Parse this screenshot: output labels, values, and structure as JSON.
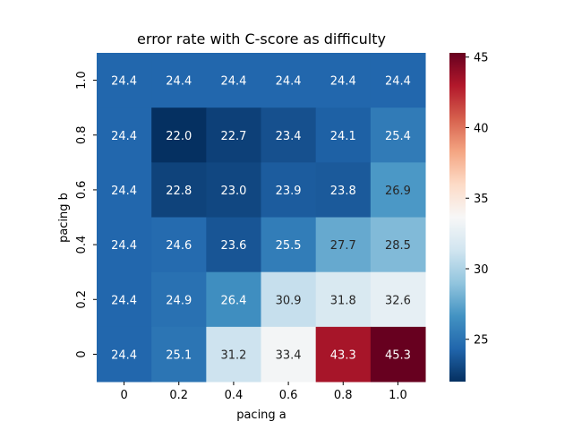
{
  "chart_data": {
    "type": "heatmap",
    "title": "error rate with C-score as difficulty",
    "xlabel": "pacing a",
    "ylabel": "pacing b",
    "x_categories": [
      "0",
      "0.2",
      "0.4",
      "0.6",
      "0.8",
      "1.0"
    ],
    "y_categories": [
      "1.0",
      "0.8",
      "0.6",
      "0.4",
      "0.2",
      "0"
    ],
    "values": [
      [
        24.4,
        24.4,
        24.4,
        24.4,
        24.4,
        24.4
      ],
      [
        24.4,
        22.0,
        22.7,
        23.4,
        24.1,
        25.4
      ],
      [
        24.4,
        22.8,
        23.0,
        23.9,
        23.8,
        26.9
      ],
      [
        24.4,
        24.6,
        23.6,
        25.5,
        27.7,
        28.5
      ],
      [
        24.4,
        24.9,
        26.4,
        30.9,
        31.8,
        32.6
      ],
      [
        24.4,
        25.1,
        31.2,
        33.4,
        43.3,
        45.3
      ]
    ],
    "value_labels": [
      [
        "24.4",
        "24.4",
        "24.4",
        "24.4",
        "24.4",
        "24.4"
      ],
      [
        "24.4",
        "22.0",
        "22.7",
        "23.4",
        "24.1",
        "25.4"
      ],
      [
        "24.4",
        "22.8",
        "23.0",
        "23.9",
        "23.8",
        "26.9"
      ],
      [
        "24.4",
        "24.6",
        "23.6",
        "25.5",
        "27.7",
        "28.5"
      ],
      [
        "24.4",
        "24.9",
        "26.4",
        "30.9",
        "31.8",
        "32.6"
      ],
      [
        "24.4",
        "25.1",
        "31.2",
        "33.4",
        "43.3",
        "45.3"
      ]
    ],
    "colorbar": {
      "colormap": "RdBu_r",
      "range": [
        22.0,
        45.3
      ],
      "ticks": [
        25,
        30,
        35,
        40,
        45
      ],
      "tick_labels": [
        "25",
        "30",
        "35",
        "40",
        "45"
      ]
    }
  }
}
